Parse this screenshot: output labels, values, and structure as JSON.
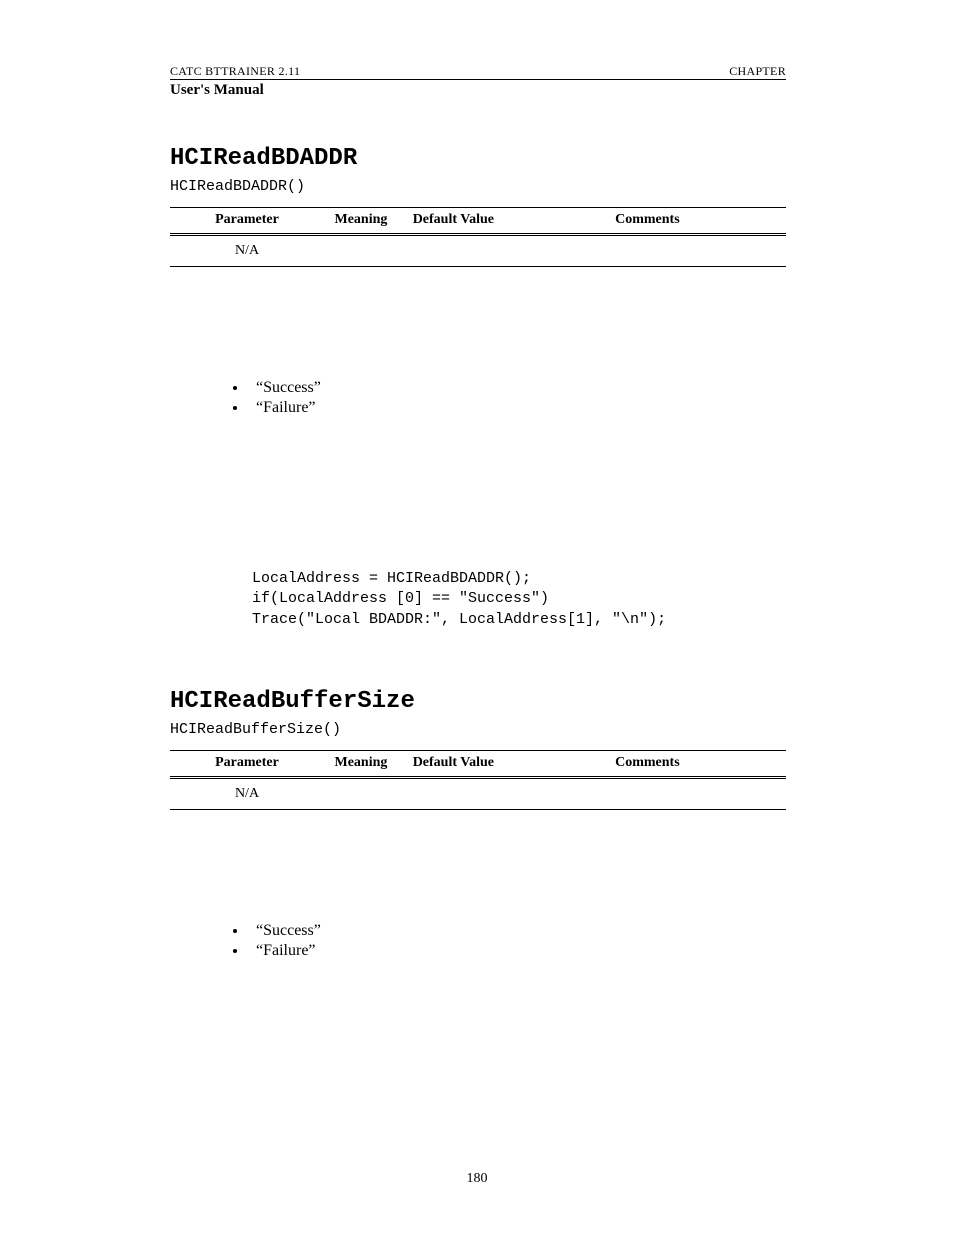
{
  "header": {
    "left": "CATC BTTRAINER 2.11",
    "right": "CHAPTER",
    "manual": "User's Manual"
  },
  "section1": {
    "title": "HCIReadBDADDR",
    "signature": "HCIReadBDADDR()",
    "table": {
      "headers": [
        "Parameter",
        "Meaning",
        "Default Value",
        "Comments"
      ],
      "row": [
        "N/A",
        "",
        "",
        ""
      ]
    },
    "bullets": [
      "“Success”",
      "“Failure”"
    ],
    "code": "LocalAddress = HCIReadBDADDR();\nif(LocalAddress [0] == \"Success\")\nTrace(\"Local BDADDR:\", LocalAddress[1], \"\\n\");"
  },
  "section2": {
    "title": "HCIReadBufferSize",
    "signature": "HCIReadBufferSize()",
    "table": {
      "headers": [
        "Parameter",
        "Meaning",
        "Default Value",
        "Comments"
      ],
      "row": [
        "N/A",
        "",
        "",
        ""
      ]
    },
    "bullets": [
      "“Success”",
      "“Failure”"
    ]
  },
  "pageNumber": "180"
}
